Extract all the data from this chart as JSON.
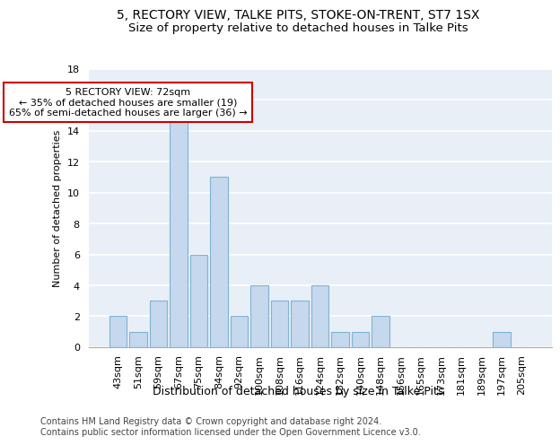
{
  "title1": "5, RECTORY VIEW, TALKE PITS, STOKE-ON-TRENT, ST7 1SX",
  "title2": "Size of property relative to detached houses in Talke Pits",
  "xlabel": "Distribution of detached houses by size in Talke Pits",
  "ylabel": "Number of detached properties",
  "categories": [
    "43sqm",
    "51sqm",
    "59sqm",
    "67sqm",
    "75sqm",
    "84sqm",
    "92sqm",
    "100sqm",
    "108sqm",
    "116sqm",
    "124sqm",
    "132sqm",
    "140sqm",
    "148sqm",
    "156sqm",
    "165sqm",
    "173sqm",
    "181sqm",
    "189sqm",
    "197sqm",
    "205sqm"
  ],
  "values": [
    2,
    1,
    3,
    15,
    6,
    11,
    2,
    4,
    3,
    3,
    4,
    1,
    1,
    2,
    0,
    0,
    0,
    0,
    0,
    1,
    0
  ],
  "bar_color": "#c5d8ed",
  "bar_edge_color": "#7fb3d3",
  "annotation_line1": "5 RECTORY VIEW: 72sqm",
  "annotation_line2": "← 35% of detached houses are smaller (19)",
  "annotation_line3": "65% of semi-detached houses are larger (36) →",
  "annotation_box_color": "#ffffff",
  "annotation_box_edge": "#cc0000",
  "ylim": [
    0,
    18
  ],
  "yticks": [
    0,
    2,
    4,
    6,
    8,
    10,
    12,
    14,
    16,
    18
  ],
  "background_color": "#e8eff7",
  "grid_color": "#ffffff",
  "footer": "Contains HM Land Registry data © Crown copyright and database right 2024.\nContains public sector information licensed under the Open Government Licence v3.0.",
  "title_fontsize": 10,
  "subtitle_fontsize": 9.5,
  "xlabel_fontsize": 9,
  "ylabel_fontsize": 8,
  "tick_fontsize": 8,
  "footer_fontsize": 7,
  "annotation_fontsize": 8
}
